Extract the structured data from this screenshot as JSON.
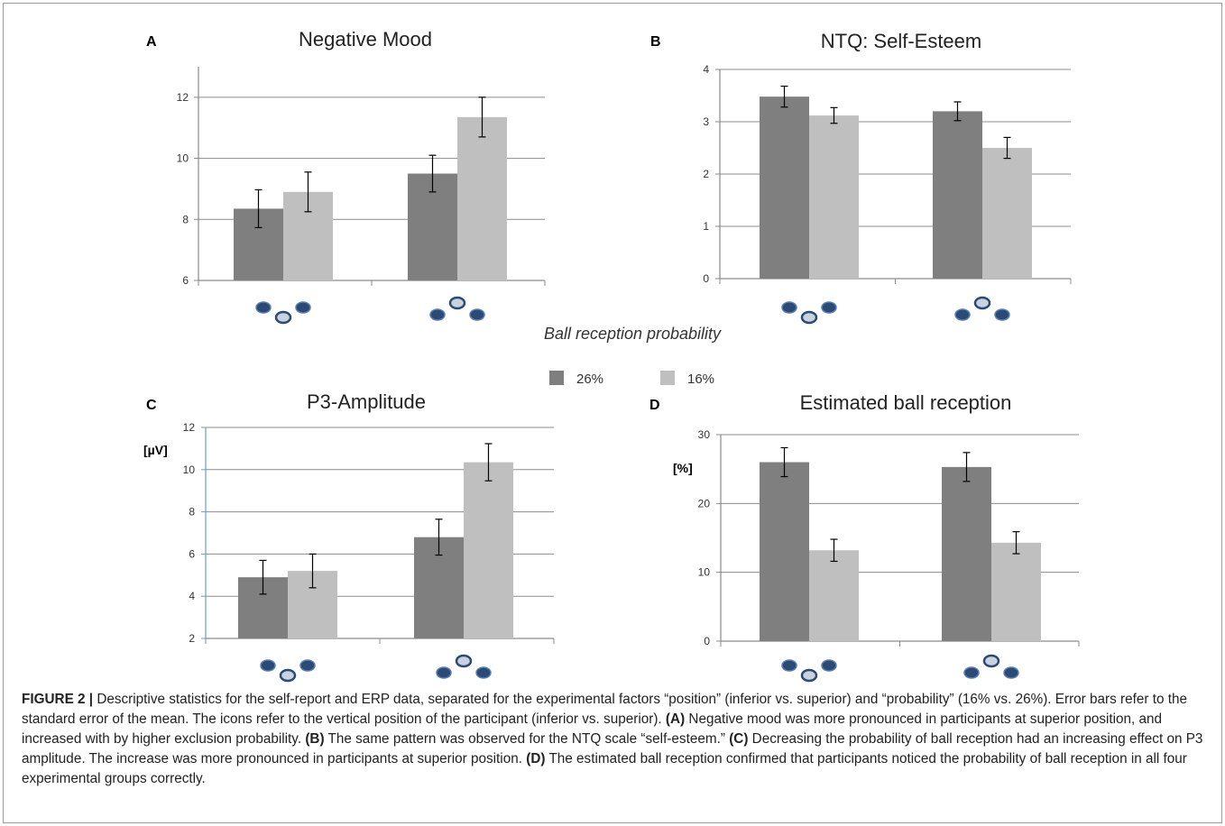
{
  "figure": {
    "legend": [
      {
        "label": "26%",
        "color": "#7f7f7f"
      },
      {
        "label": "16%",
        "color": "#bfbfbf"
      }
    ],
    "shared_xlabel": "Ball reception probability",
    "x_icons": [
      "inferior-position-icon",
      "superior-position-icon"
    ]
  },
  "chart_data": [
    {
      "letter": "A",
      "type": "bar",
      "title": "Negative Mood",
      "unit": "",
      "ylim": [
        6,
        13
      ],
      "yticks": [
        6,
        8,
        10,
        12
      ],
      "grid": true,
      "categories": [
        "inferior",
        "superior"
      ],
      "series": [
        {
          "name": "26%",
          "values": [
            8.35,
            9.5
          ],
          "errors": [
            0.62,
            0.6
          ]
        },
        {
          "name": "16%",
          "values": [
            8.9,
            11.35
          ],
          "errors": [
            0.65,
            0.65
          ]
        }
      ]
    },
    {
      "letter": "B",
      "type": "bar",
      "title": "NTQ: Self-Esteem",
      "unit": "",
      "ylim": [
        0,
        4
      ],
      "yticks": [
        0,
        1,
        2,
        3,
        4
      ],
      "grid": true,
      "categories": [
        "inferior",
        "superior"
      ],
      "series": [
        {
          "name": "26%",
          "values": [
            3.48,
            3.2
          ],
          "errors": [
            0.2,
            0.18
          ]
        },
        {
          "name": "16%",
          "values": [
            3.12,
            2.5
          ],
          "errors": [
            0.15,
            0.2
          ]
        }
      ]
    },
    {
      "letter": "C",
      "type": "bar",
      "title": "P3-Amplitude",
      "unit": "[µV]",
      "ylim": [
        2,
        12
      ],
      "yticks": [
        2,
        4,
        6,
        8,
        10,
        12
      ],
      "grid": true,
      "categories": [
        "inferior",
        "superior"
      ],
      "series": [
        {
          "name": "26%",
          "values": [
            4.9,
            6.8
          ],
          "errors": [
            0.8,
            0.85
          ]
        },
        {
          "name": "16%",
          "values": [
            5.2,
            10.35
          ],
          "errors": [
            0.8,
            0.88
          ]
        }
      ]
    },
    {
      "letter": "D",
      "type": "bar",
      "title": "Estimated ball reception",
      "unit": "[%]",
      "ylim": [
        0,
        30
      ],
      "yticks": [
        0,
        10,
        20,
        30
      ],
      "grid": true,
      "categories": [
        "inferior",
        "superior"
      ],
      "series": [
        {
          "name": "26%",
          "values": [
            26.0,
            25.3
          ],
          "errors": [
            2.1,
            2.1
          ]
        },
        {
          "name": "16%",
          "values": [
            13.2,
            14.3
          ],
          "errors": [
            1.6,
            1.6
          ]
        }
      ]
    }
  ],
  "caption": {
    "label": "FIGURE 2 |",
    "parts": [
      {
        "bold": false,
        "text": " Descriptive statistics for the self-report and ERP data, separated for the experimental factors “position” (inferior vs. superior) and “probability” (16% vs. 26%). Error bars refer to the standard error of the mean. The icons refer to the vertical position of the participant (inferior vs. superior). "
      },
      {
        "bold": true,
        "text": "(A)"
      },
      {
        "bold": false,
        "text": " Negative mood was more pronounced in participants at superior position, and increased with by higher exclusion probability. "
      },
      {
        "bold": true,
        "text": "(B)"
      },
      {
        "bold": false,
        "text": " The same pattern was observed for the NTQ scale “self-esteem.” "
      },
      {
        "bold": true,
        "text": "(C)"
      },
      {
        "bold": false,
        "text": " Decreasing the probability of ball reception had an increasing effect on P3 amplitude. The increase was more pronounced in participants at superior position. "
      },
      {
        "bold": true,
        "text": "(D)"
      },
      {
        "bold": false,
        "text": " The estimated ball reception confirmed that participants noticed the probability of ball reception in all four experimental groups correctly."
      }
    ]
  }
}
